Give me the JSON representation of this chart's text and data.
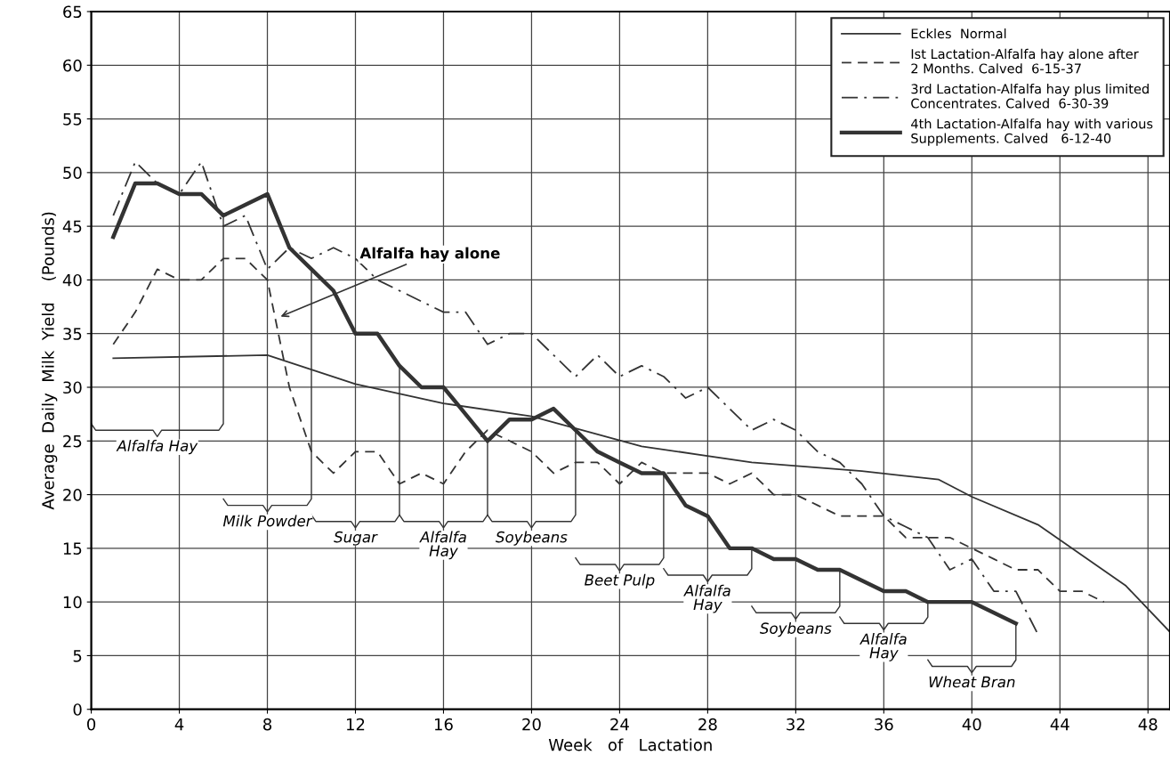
{
  "chart_data": {
    "type": "line",
    "xlabel": "Week   of   Lactation",
    "ylabel": "Average  Daily  Milk  Yield    (Pounds)",
    "xlim": [
      0,
      49
    ],
    "xticks": [
      0,
      4,
      8,
      12,
      16,
      20,
      24,
      28,
      32,
      36,
      40,
      44,
      48
    ],
    "ylim": [
      0,
      65
    ],
    "yticks": [
      0,
      5,
      10,
      15,
      20,
      25,
      30,
      35,
      40,
      45,
      50,
      55,
      60,
      65
    ],
    "grid": true,
    "legend": "top right",
    "marker": "none",
    "series": [
      {
        "name": "Eckles  Normal",
        "color": "#333333",
        "line_style": "solid",
        "x": [
          1,
          8,
          12,
          16,
          20,
          25,
          30,
          35,
          38.5,
          40,
          43,
          47,
          49
        ],
        "values": [
          32.7,
          33,
          30.3,
          28.5,
          27.3,
          24.5,
          23,
          22.2,
          21.4,
          19.8,
          17.2,
          11.5,
          7.2
        ]
      },
      {
        "name": "Ist Lactation-Alfalfa hay alone after\n2 Months. Calved  6-15-37",
        "color": "#333333",
        "line_style": "dashed",
        "x": [
          1,
          2,
          3,
          4,
          5,
          6,
          7,
          8,
          9,
          10,
          11,
          12,
          13,
          14,
          15,
          16,
          17,
          18,
          19,
          20,
          21,
          22,
          23,
          24,
          25,
          26,
          27,
          28,
          29,
          30,
          31,
          32,
          33,
          34,
          35,
          36,
          37,
          38,
          39,
          40,
          41,
          42,
          43,
          44,
          45,
          46
        ],
        "values": [
          34,
          37,
          41,
          40,
          40,
          42,
          42,
          40,
          30,
          24,
          22,
          24,
          24,
          21,
          22,
          21,
          24,
          26,
          25,
          24,
          22,
          23,
          23,
          21,
          23,
          22,
          22,
          22,
          21,
          22,
          20,
          20,
          19,
          18,
          18,
          18,
          16,
          16,
          16,
          15,
          14,
          13,
          13,
          11,
          11,
          10
        ]
      },
      {
        "name": "3rd Lactation-Alfalfa hay plus limited\nConcentrates. Calved  6-30-39",
        "color": "#333333",
        "line_style": "dashdot",
        "x": [
          1,
          2,
          3,
          4,
          5,
          6,
          7,
          8,
          9,
          10,
          11,
          12,
          13,
          14,
          15,
          16,
          17,
          18,
          19,
          20,
          21,
          22,
          23,
          24,
          25,
          26,
          27,
          28,
          29,
          30,
          31,
          32,
          33,
          34,
          35,
          36,
          37,
          38,
          39,
          40,
          41,
          42,
          43
        ],
        "values": [
          46,
          51,
          49,
          48,
          51,
          45,
          46,
          41,
          43,
          42,
          43,
          42,
          40,
          39,
          38,
          37,
          37,
          34,
          35,
          35,
          33,
          31,
          33,
          31,
          32,
          31,
          29,
          30,
          28,
          26,
          27,
          26,
          24,
          23,
          21,
          18,
          17,
          16,
          13,
          14,
          11,
          11,
          7
        ]
      },
      {
        "name": "4th Lactation-Alfalfa hay with various\nSupplements. Calved   6-12-40",
        "color": "#333333",
        "line_style": "solid",
        "x": [
          1,
          2,
          3,
          4,
          5,
          6,
          7,
          8,
          9,
          10,
          11,
          12,
          13,
          14,
          15,
          16,
          17,
          18,
          19,
          20,
          21,
          22,
          23,
          24,
          25,
          26,
          27,
          28,
          29,
          30,
          31,
          32,
          33,
          34,
          35,
          36,
          37,
          38,
          39,
          40,
          41,
          42
        ],
        "values": [
          44,
          49,
          49,
          48,
          48,
          46,
          47,
          48,
          43,
          41,
          39,
          35,
          35,
          32,
          30,
          30,
          27.5,
          25,
          27,
          27,
          28,
          26,
          24,
          23,
          22,
          22,
          19,
          18,
          15,
          15,
          14,
          14,
          13,
          13,
          12,
          11,
          11,
          10,
          10,
          10,
          9,
          8
        ]
      }
    ],
    "annotations": [
      {
        "text": "Alfalfa hay alone",
        "x": 8.5,
        "y": 36.5
      },
      "Alfalfa Hay",
      {
        "text": "Milk Powder",
        "x": 10,
        "y": 41
      },
      "Sugar",
      "Alfalfa\nHay",
      {
        "text": "Soybeans",
        "x": 22,
        "y": 26
      },
      {
        "text": "Beet Pulp",
        "x": 26,
        "y": 22
      },
      {
        "text": "Alfalfa\nHay",
        "x": 30,
        "y": 15
      },
      {
        "text": "Soybeans",
        "x": 34,
        "y": 13
      },
      {
        "text": "Alfalfa\nHay",
        "x": 38,
        "y": 10
      },
      {
        "text": "Wheat Bran",
        "x": 42,
        "y": 8
      }
    ]
  }
}
